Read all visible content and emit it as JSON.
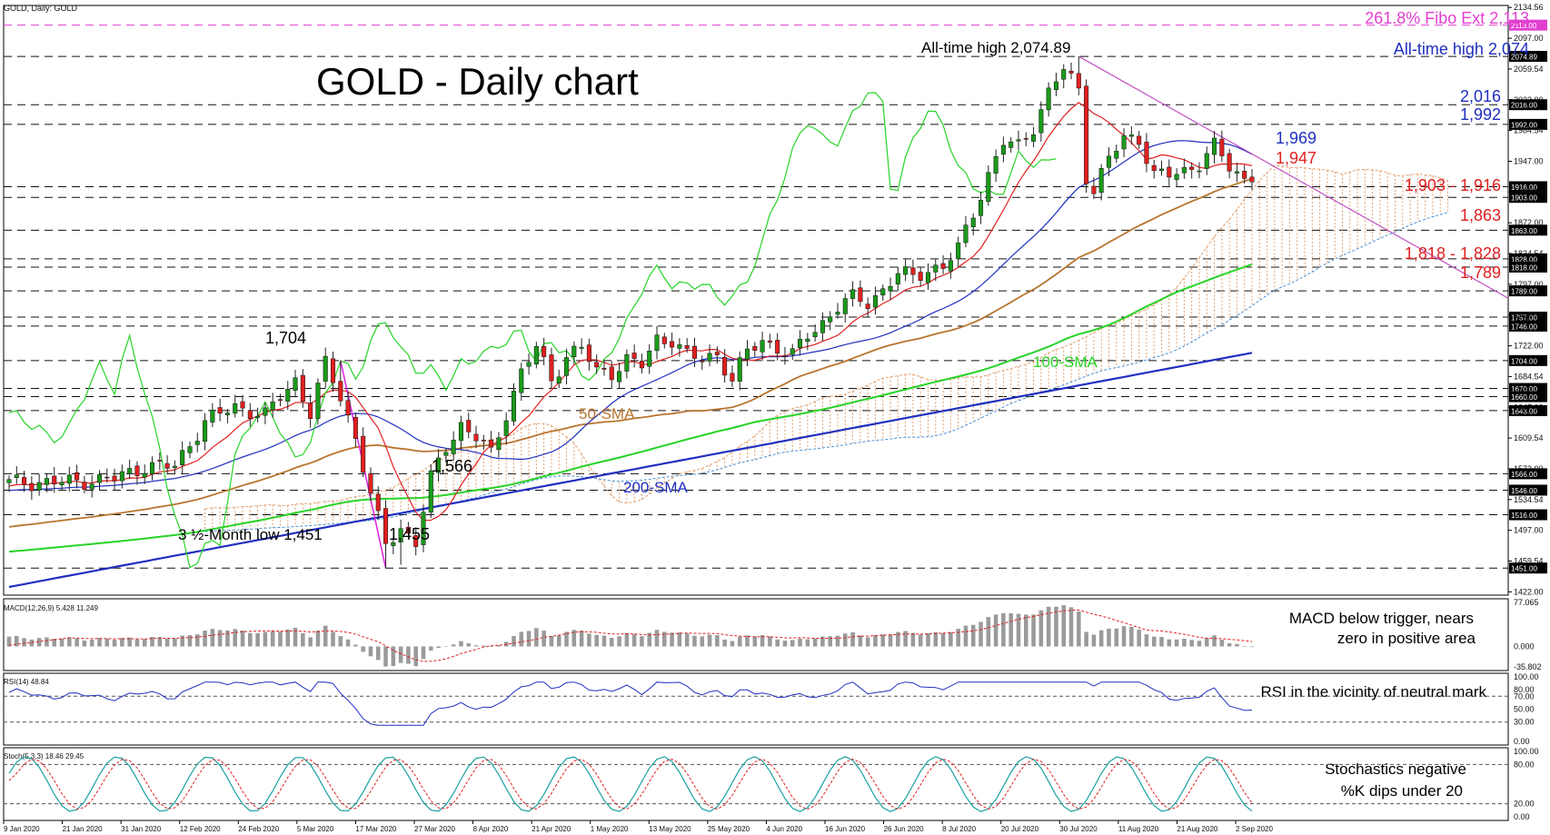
{
  "header": "GOLD, Daily:  GOLD",
  "title": "GOLD - Daily chart",
  "colors": {
    "bull": "#1a9a1a",
    "bear": "#e02020",
    "fibo": "#e040d0",
    "trend": "#c050c0",
    "sma50": "#b8742e",
    "sma100": "#27d327",
    "sma200": "#1f2fbf",
    "tenkan": "#e02020",
    "kijun": "#1f2fbf",
    "chikou": "#27d327",
    "cloud": "#e0a070",
    "macdBar": "#9a9a9a",
    "signal": "#e02020",
    "rsi": "#1f2fbf",
    "stochK": "#1aa0a0",
    "stochD": "#e02020",
    "labelBlue": "#1f2fbf",
    "labelRed": "#e02020",
    "labelBrown": "#b8742e",
    "labelGreen": "#27d327"
  },
  "annotations": {
    "fibo": "261.8% Fibo Ext 2,113",
    "ath_blue": "All-time high 2,074",
    "ath_top": "All-time high 2,074.89",
    "l2016": "2,016",
    "l1992": "1,992",
    "l1969": "1,969",
    "l1947": "1,947",
    "l1903": "1,903 - 1,916",
    "l1863": "1,863",
    "l1818": "1,818 - 1,828",
    "l1789": "1,789",
    "l1704": "1,704",
    "l1566": "1,566",
    "l1455": "1,455",
    "low1451": "3 ½-Month low 1,451",
    "sma50": "50-SMA",
    "sma100": "100-SMA",
    "sma200": "200-SMA"
  },
  "chart_data": {
    "type": "candlestick",
    "symbol": "GOLD",
    "timeframe": "Daily",
    "ylim": [
      1418,
      2137
    ],
    "price_ticks": [
      "2134.56",
      "2097.00",
      "2059.54",
      "2022.00",
      "1984.54",
      "1947.00",
      "1909.54",
      "1872.00",
      "1834.54",
      "1797.00",
      "1759.54",
      "1722.00",
      "1684.54",
      "1647.00",
      "1609.54",
      "1572.00",
      "1534.54",
      "1497.00",
      "1459.54",
      "1422.00"
    ],
    "level_labels": [
      {
        "value": 2113.0,
        "text": "2113.00",
        "bg": "#e040d0"
      },
      {
        "value": 2074.89,
        "text": "2074.89"
      },
      {
        "value": 2016.0,
        "text": "2016.00"
      },
      {
        "value": 1992.0,
        "text": "1992.00"
      },
      {
        "value": 1916.0,
        "text": "1916.00"
      },
      {
        "value": 1903.0,
        "text": "1903.00"
      },
      {
        "value": 1863.0,
        "text": "1863.00"
      },
      {
        "value": 1828.0,
        "text": "1828.00"
      },
      {
        "value": 1818.0,
        "text": "1818.00"
      },
      {
        "value": 1789.0,
        "text": "1789.00"
      },
      {
        "value": 1757.0,
        "text": "1757.00"
      },
      {
        "value": 1746.0,
        "text": "1746.00"
      },
      {
        "value": 1704.0,
        "text": "1704.00"
      },
      {
        "value": 1670.0,
        "text": "1670.00"
      },
      {
        "value": 1660.0,
        "text": "1660.00"
      },
      {
        "value": 1643.0,
        "text": "1643.00"
      },
      {
        "value": 1566.0,
        "text": "1566.00"
      },
      {
        "value": 1546.0,
        "text": "1546.00"
      },
      {
        "value": 1516.0,
        "text": "1516.00"
      },
      {
        "value": 1451.0,
        "text": "1451.00"
      }
    ],
    "x_labels": [
      "9 Jan 2020",
      "21 Jan 2020",
      "31 Jan 2020",
      "12 Feb 2020",
      "24 Feb 2020",
      "5 Mar 2020",
      "17 Mar 2020",
      "27 Mar 2020",
      "8 Apr 2020",
      "21 Apr 2020",
      "1 May 2020",
      "13 May 2020",
      "25 May 2020",
      "4 Jun 2020",
      "16 Jun 2020",
      "26 Jun 2020",
      "8 Jul 2020",
      "20 Jul 2020",
      "30 Jul 2020",
      "11 Aug 2020",
      "21 Aug 2020",
      "2 Sep 2020"
    ],
    "anchors": [
      [
        0,
        1555
      ],
      [
        8,
        1556
      ],
      [
        14,
        1560
      ],
      [
        18,
        1575
      ],
      [
        22,
        1575
      ],
      [
        26,
        1630
      ],
      [
        30,
        1648
      ],
      [
        34,
        1637
      ],
      [
        36,
        1660
      ],
      [
        38,
        1680
      ],
      [
        40,
        1640
      ],
      [
        42,
        1700
      ],
      [
        44,
        1660
      ],
      [
        46,
        1610
      ],
      [
        48,
        1540
      ],
      [
        50,
        1480
      ],
      [
        52,
        1500
      ],
      [
        54,
        1482
      ],
      [
        56,
        1560
      ],
      [
        58,
        1600
      ],
      [
        60,
        1625
      ],
      [
        62,
        1610
      ],
      [
        64,
        1590
      ],
      [
        66,
        1640
      ],
      [
        68,
        1690
      ],
      [
        70,
        1720
      ],
      [
        72,
        1680
      ],
      [
        74,
        1710
      ],
      [
        76,
        1720
      ],
      [
        78,
        1690
      ],
      [
        80,
        1690
      ],
      [
        82,
        1705
      ],
      [
        84,
        1698
      ],
      [
        86,
        1730
      ],
      [
        88,
        1730
      ],
      [
        90,
        1710
      ],
      [
        92,
        1705
      ],
      [
        94,
        1712
      ],
      [
        96,
        1680
      ],
      [
        98,
        1715
      ],
      [
        100,
        1728
      ],
      [
        102,
        1720
      ],
      [
        104,
        1710
      ],
      [
        106,
        1735
      ],
      [
        108,
        1750
      ],
      [
        110,
        1770
      ],
      [
        112,
        1780
      ],
      [
        114,
        1775
      ],
      [
        116,
        1790
      ],
      [
        118,
        1810
      ],
      [
        120,
        1806
      ],
      [
        122,
        1815
      ],
      [
        124,
        1818
      ],
      [
        126,
        1840
      ],
      [
        128,
        1885
      ],
      [
        130,
        1930
      ],
      [
        132,
        1970
      ],
      [
        134,
        1965
      ],
      [
        136,
        1990
      ],
      [
        138,
        2030
      ],
      [
        140,
        2060
      ],
      [
        142,
        2035
      ],
      [
        143,
        1930
      ],
      [
        144,
        1912
      ],
      [
        146,
        1950
      ],
      [
        148,
        1975
      ],
      [
        150,
        1975
      ],
      [
        152,
        1930
      ],
      [
        154,
        1930
      ],
      [
        156,
        1935
      ],
      [
        158,
        1945
      ],
      [
        160,
        1965
      ],
      [
        162,
        1940
      ],
      [
        164,
        1925
      ],
      [
        165,
        1930
      ]
    ],
    "series_notes": {
      "candles": 166,
      "ma": [
        "50-SMA",
        "100-SMA",
        "200-SMA"
      ],
      "ichimoku": [
        "Tenkan",
        "Kijun",
        "Chikou",
        "Cloud"
      ]
    },
    "macd": {
      "label": "MACD(12,26,9) 5.428 11.249",
      "ticks": [
        "77.065",
        "0.000",
        "-35.802"
      ],
      "ylim": [
        -35.802,
        77.065
      ]
    },
    "rsi": {
      "label": "RSI(14) 48.84",
      "ticks": [
        "100.00",
        "80.00",
        "70.00",
        "50.00",
        "30.00",
        "0.00"
      ],
      "ylim": [
        0,
        100
      ]
    },
    "stoch": {
      "label": "Stoch(5,3,3) 18.46 29.45",
      "ticks": [
        "100.00",
        "80.00",
        "20.00",
        "0.00"
      ],
      "ylim": [
        0,
        100
      ]
    }
  },
  "indicator_notes": {
    "macd": [
      "MACD below trigger, nears",
      "zero in positive area"
    ],
    "rsi": "RSI in the vicinity of neutral mark",
    "stoch": [
      "Stochastics negative",
      "%K dips under 20"
    ]
  }
}
